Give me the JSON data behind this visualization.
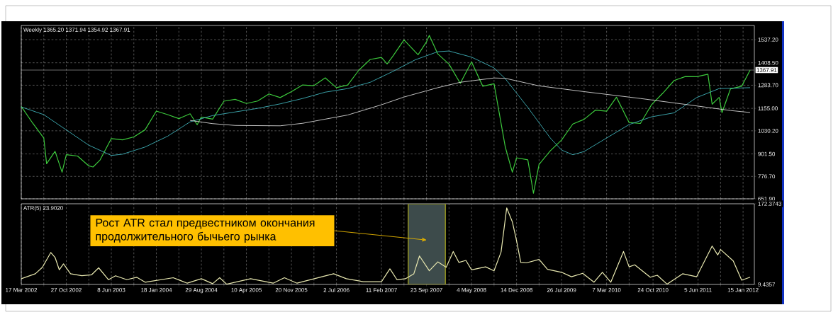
{
  "chart_data": [
    {
      "type": "line",
      "title": "Weekly 1365.20 1371.94 1354.92 1367.91",
      "grid": true,
      "tick_labels": "y",
      "xlim": [
        "2002-03-17",
        "2012-03-11"
      ],
      "xticks": [
        {
          "value": "2002-03-17",
          "label": null
        },
        {
          "value": "2002-07-07",
          "label": null
        },
        {
          "value": "2002-10-27",
          "label": null
        },
        {
          "value": "2003-02-16",
          "label": null
        },
        {
          "value": "2003-06-08",
          "label": null
        },
        {
          "value": "2003-09-28",
          "label": null
        },
        {
          "value": "2004-01-18",
          "label": null
        },
        {
          "value": "2004-05-09",
          "label": null
        },
        {
          "value": "2004-08-29",
          "label": null
        },
        {
          "value": "2004-12-19",
          "label": null
        },
        {
          "value": "2005-04-10",
          "label": null
        },
        {
          "value": "2005-07-31",
          "label": null
        },
        {
          "value": "2005-11-20",
          "label": null
        },
        {
          "value": "2006-03-12",
          "label": null
        },
        {
          "value": "2006-07-02",
          "label": null
        },
        {
          "value": "2006-10-22",
          "label": null
        },
        {
          "value": "2007-02-11",
          "label": null
        },
        {
          "value": "2007-06-03",
          "label": null
        },
        {
          "value": "2007-09-23",
          "label": null
        },
        {
          "value": "2008-01-13",
          "label": null
        },
        {
          "value": "2008-05-04",
          "label": null
        },
        {
          "value": "2008-08-24",
          "label": null
        },
        {
          "value": "2008-12-14",
          "label": null
        },
        {
          "value": "2009-04-05",
          "label": null
        },
        {
          "value": "2009-07-26",
          "label": null
        },
        {
          "value": "2009-11-15",
          "label": null
        },
        {
          "value": "2010-03-07",
          "label": null
        },
        {
          "value": "2010-06-27",
          "label": null
        },
        {
          "value": "2010-10-24",
          "label": null
        },
        {
          "value": "2011-02-13",
          "label": null
        },
        {
          "value": "2011-06-05",
          "label": null
        },
        {
          "value": "2011-09-25",
          "label": null
        },
        {
          "value": "2012-01-15",
          "label": null
        }
      ],
      "ylim": [
        651.9,
        1616
      ],
      "yticks": [
        {
          "value": 651.9,
          "label": "651.90"
        },
        {
          "value": 776.7,
          "label": "776.70"
        },
        {
          "value": 901.5,
          "label": "901.50"
        },
        {
          "value": 1030.2,
          "label": "1030.20"
        },
        {
          "value": 1155,
          "label": "1155.00"
        },
        {
          "value": 1283.7,
          "label": "1283.70"
        },
        {
          "value": 1408.5,
          "label": "1408.50"
        },
        {
          "value": 1537.2,
          "label": "1537.20"
        }
      ],
      "ref_lines": [
        {
          "axis": "y",
          "value": 1367.91,
          "label": "1367.91",
          "color": "#a0a0a0"
        }
      ],
      "series": [
        {
          "color": "#3cc83c",
          "x": [
            "2002-03-17",
            "2002-05-12",
            "2002-07-07",
            "2002-07-21",
            "2002-09-01",
            "2002-10-06",
            "2002-10-27",
            "2002-12-22",
            "2003-02-16",
            "2003-03-09",
            "2003-04-13",
            "2003-06-08",
            "2003-08-03",
            "2003-09-28",
            "2003-11-23",
            "2004-01-18",
            "2004-03-14",
            "2004-05-09",
            "2004-07-04",
            "2004-08-08",
            "2004-08-29",
            "2004-10-24",
            "2004-12-19",
            "2005-02-13",
            "2005-04-10",
            "2005-06-05",
            "2005-07-31",
            "2005-09-25",
            "2005-11-20",
            "2006-01-15",
            "2006-03-12",
            "2006-05-07",
            "2006-07-02",
            "2006-08-27",
            "2006-10-22",
            "2006-12-17",
            "2007-02-11",
            "2007-03-11",
            "2007-04-08",
            "2007-06-03",
            "2007-08-12",
            "2007-09-23",
            "2007-10-07",
            "2007-11-18",
            "2008-01-13",
            "2008-03-09",
            "2008-05-04",
            "2008-06-29",
            "2008-08-24",
            "2008-10-19",
            "2008-11-23",
            "2008-12-14",
            "2009-02-08",
            "2009-03-08",
            "2009-04-05",
            "2009-05-31",
            "2009-07-26",
            "2009-09-20",
            "2009-11-15",
            "2010-01-10",
            "2010-03-07",
            "2010-04-25",
            "2010-06-27",
            "2010-08-22",
            "2010-10-17",
            "2010-12-12",
            "2011-02-06",
            "2011-04-03",
            "2011-05-29",
            "2011-07-24",
            "2011-08-14",
            "2011-09-18",
            "2011-10-02",
            "2011-11-13",
            "2012-01-08",
            "2012-02-19"
          ],
          "values": [
            1166,
            1074,
            990,
            847,
            916,
            800,
            897,
            890,
            835,
            829,
            868,
            987,
            980,
            996,
            1036,
            1140,
            1120,
            1098,
            1125,
            1064,
            1107,
            1095,
            1195,
            1205,
            1182,
            1196,
            1235,
            1215,
            1248,
            1285,
            1281,
            1325,
            1270,
            1285,
            1368,
            1427,
            1438,
            1402,
            1444,
            1536,
            1453,
            1525,
            1561,
            1458,
            1401,
            1294,
            1413,
            1278,
            1292,
            940,
            800,
            880,
            869,
            683,
            843,
            919,
            979,
            1068,
            1094,
            1145,
            1139,
            1217,
            1076,
            1071,
            1176,
            1240,
            1310,
            1332,
            1331,
            1345,
            1178,
            1216,
            1131,
            1263,
            1278,
            1368
          ]
        },
        {
          "color": "#48c8d0",
          "x": [
            "2002-03-17",
            "2002-07-07",
            "2002-10-27",
            "2003-02-16",
            "2003-06-08",
            "2003-08-03",
            "2003-11-23",
            "2004-03-14",
            "2004-07-04",
            "2004-10-24",
            "2005-02-13",
            "2005-06-05",
            "2005-09-25",
            "2006-01-15",
            "2006-05-07",
            "2006-08-27",
            "2006-12-17",
            "2007-04-08",
            "2007-07-29",
            "2007-11-18",
            "2008-01-13",
            "2008-05-04",
            "2008-08-24",
            "2008-10-19",
            "2009-02-08",
            "2009-05-31",
            "2009-07-26",
            "2009-09-20",
            "2009-11-15",
            "2010-03-07",
            "2010-06-27",
            "2010-10-17",
            "2011-02-06",
            "2011-05-29",
            "2011-09-18",
            "2012-02-19"
          ],
          "values": [
            1163,
            1120,
            1035,
            950,
            893,
            900,
            940,
            1000,
            1080,
            1115,
            1135,
            1155,
            1180,
            1210,
            1245,
            1265,
            1300,
            1360,
            1425,
            1470,
            1474,
            1440,
            1380,
            1320,
            1160,
            990,
            923,
            897,
            915,
            990,
            1065,
            1108,
            1130,
            1215,
            1265,
            1270
          ]
        },
        {
          "color": "#f0f0f0",
          "x": [
            "2004-07-04",
            "2004-10-24",
            "2005-02-13",
            "2005-09-25",
            "2006-01-15",
            "2006-08-27",
            "2007-02-11",
            "2007-06-03",
            "2007-11-18",
            "2008-03-09",
            "2008-08-24",
            "2008-10-19",
            "2009-04-05",
            "2009-11-15",
            "2010-08-22",
            "2011-04-03",
            "2011-11-13",
            "2012-02-19"
          ],
          "values": [
            1088,
            1070,
            1060,
            1058,
            1072,
            1118,
            1175,
            1218,
            1270,
            1300,
            1324,
            1322,
            1280,
            1248,
            1210,
            1177,
            1143,
            1132
          ]
        }
      ]
    },
    {
      "type": "line",
      "title": "ATR(5) 23.9020",
      "grid": "x",
      "xlim": [
        "2002-03-17",
        "2012-03-11"
      ],
      "xticks": [
        {
          "value": "2002-03-17",
          "label": "17 Mar 2002"
        },
        {
          "value": "2002-07-07",
          "label": null
        },
        {
          "value": "2002-10-27",
          "label": "27 Oct 2002"
        },
        {
          "value": "2003-02-16",
          "label": null
        },
        {
          "value": "2003-06-08",
          "label": "8 Jun 2003"
        },
        {
          "value": "2003-09-28",
          "label": null
        },
        {
          "value": "2004-01-18",
          "label": "18 Jan 2004"
        },
        {
          "value": "2004-05-09",
          "label": null
        },
        {
          "value": "2004-08-29",
          "label": "29 Aug 2004"
        },
        {
          "value": "2004-12-19",
          "label": null
        },
        {
          "value": "2005-04-10",
          "label": "10 Apr 2005"
        },
        {
          "value": "2005-07-31",
          "label": null
        },
        {
          "value": "2005-11-20",
          "label": "20 Nov 2005"
        },
        {
          "value": "2006-03-12",
          "label": null
        },
        {
          "value": "2006-07-02",
          "label": "2 Jul 2006"
        },
        {
          "value": "2006-10-22",
          "label": null
        },
        {
          "value": "2007-02-11",
          "label": "11 Feb 2007"
        },
        {
          "value": "2007-06-03",
          "label": null
        },
        {
          "value": "2007-09-23",
          "label": "23 Sep 2007"
        },
        {
          "value": "2008-01-13",
          "label": null
        },
        {
          "value": "2008-05-04",
          "label": "4 May 2008"
        },
        {
          "value": "2008-08-24",
          "label": null
        },
        {
          "value": "2008-12-14",
          "label": "14 Dec 2008"
        },
        {
          "value": "2009-04-05",
          "label": null
        },
        {
          "value": "2009-07-26",
          "label": "26 Jul 2009"
        },
        {
          "value": "2009-11-15",
          "label": null
        },
        {
          "value": "2010-03-07",
          "label": "7 Mar 2010"
        },
        {
          "value": "2010-06-27",
          "label": null
        },
        {
          "value": "2010-10-24",
          "label": "24 Oct 2010"
        },
        {
          "value": "2011-02-13",
          "label": null
        },
        {
          "value": "2011-06-05",
          "label": "5 Jun 2011"
        },
        {
          "value": "2011-09-25",
          "label": null
        },
        {
          "value": "2012-01-15",
          "label": "15 Jan 2012"
        }
      ],
      "ylim": [
        9.4357,
        172.3743
      ],
      "yticks": [
        9.4357,
        172.3743
      ],
      "bands": [
        {
          "axis": "x",
          "from": "2007-06-24",
          "to": "2007-12-26",
          "color": "#3d4b4b"
        }
      ],
      "annotations": [
        "Рост ATR стал предвестником окончания продолжительного бычьего рынка"
      ],
      "series": [
        {
          "color": "#e8e8b0",
          "x": [
            "2002-03-17",
            "2002-05-26",
            "2002-06-30",
            "2002-08-11",
            "2002-09-01",
            "2002-09-22",
            "2002-10-13",
            "2002-11-17",
            "2003-01-12",
            "2003-03-02",
            "2003-04-06",
            "2003-05-25",
            "2003-06-29",
            "2003-08-24",
            "2003-10-12",
            "2003-11-23",
            "2004-04-11",
            "2004-06-20",
            "2004-08-29",
            "2004-10-24",
            "2004-11-28",
            "2005-01-02",
            "2005-05-01",
            "2005-08-21",
            "2005-10-16",
            "2005-12-18",
            "2006-06-18",
            "2006-08-20",
            "2006-11-12",
            "2007-02-11",
            "2007-03-25",
            "2007-04-29",
            "2007-06-10",
            "2007-07-22",
            "2007-08-19",
            "2007-10-07",
            "2007-11-18",
            "2007-12-30",
            "2008-02-03",
            "2008-03-02",
            "2008-04-06",
            "2008-05-04",
            "2008-07-13",
            "2008-08-24",
            "2008-09-28",
            "2008-10-26",
            "2008-11-23",
            "2008-12-14",
            "2009-01-04",
            "2009-02-01",
            "2009-04-05",
            "2009-05-17",
            "2009-07-26",
            "2009-09-13",
            "2009-11-08",
            "2010-01-03",
            "2010-02-14",
            "2010-03-28",
            "2010-05-30",
            "2010-06-27",
            "2010-07-25",
            "2010-10-10",
            "2010-11-14",
            "2011-01-02",
            "2011-03-20",
            "2011-05-29",
            "2011-08-14",
            "2011-09-11",
            "2011-09-25",
            "2011-11-27",
            "2012-01-08",
            "2012-02-19"
          ],
          "values": [
            21,
            31,
            44,
            74,
            64,
            39,
            51,
            31,
            27,
            29,
            43,
            19,
            27,
            19,
            24,
            14,
            23,
            12,
            21,
            11,
            23,
            10,
            21,
            12,
            23,
            12,
            31,
            21,
            15,
            15,
            41,
            19,
            21,
            31,
            67,
            37,
            55,
            44,
            76,
            54,
            58,
            39,
            45,
            37,
            75,
            164,
            136,
            98,
            54,
            53,
            60,
            40,
            34,
            25,
            32,
            14,
            34,
            14,
            76,
            45,
            49,
            24,
            28,
            10,
            31,
            25,
            87,
            69,
            80,
            57,
            18,
            24
          ]
        }
      ]
    }
  ]
}
